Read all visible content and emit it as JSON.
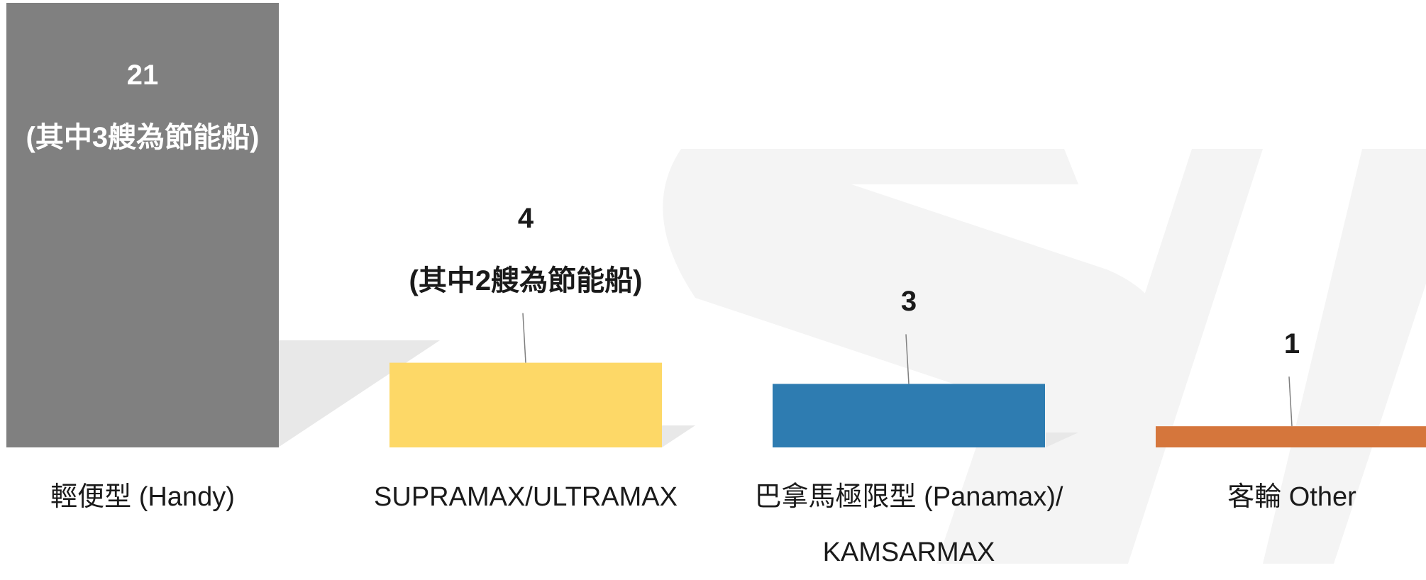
{
  "chart_data": {
    "type": "bar",
    "categories": [
      "輕便型 (Handy)",
      "SUPRAMAX/ULTRAMAX",
      "巴拿馬極限型 (Panamax)/\nKAMSARMAX",
      "客輪 Other"
    ],
    "values": [
      21,
      4,
      3,
      1
    ],
    "value_labels": [
      "21\n(其中3艘為節能船)",
      "4\n(其中2艘為節能船)",
      "3",
      "1"
    ],
    "colors": [
      "#808080",
      "#fdd867",
      "#2e7cb1",
      "#d5763c"
    ]
  }
}
